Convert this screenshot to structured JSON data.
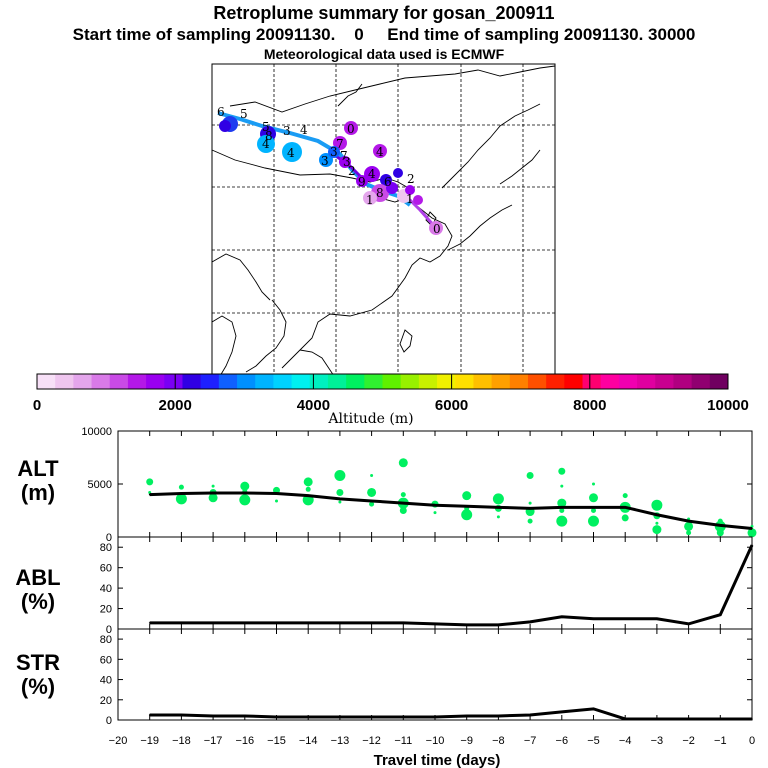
{
  "header": {
    "title": "Retroplume summary for gosan_200911",
    "subtitle": "Start time of sampling 20091130.    0     End time of sampling 20091130. 30000",
    "met_line": "Meteorological data used is ECMWF"
  },
  "colorbar": {
    "label": "Altitude (m)",
    "ticks": [
      "0",
      "2000",
      "4000",
      "6000",
      "8000",
      "10000"
    ],
    "colors": [
      "#f7e0f7",
      "#efc6ef",
      "#e4a6ec",
      "#d97ae8",
      "#c94ae6",
      "#b418e8",
      "#9a00f0",
      "#7a00f4",
      "#3000e4",
      "#1e20ff",
      "#1060ff",
      "#0090ff",
      "#00b4ff",
      "#00d2ff",
      "#00f0f0",
      "#00f0c0",
      "#00f098",
      "#00f060",
      "#30f030",
      "#60f000",
      "#98f000",
      "#c8f000",
      "#f0f000",
      "#ffe000",
      "#ffc000",
      "#ffa000",
      "#ff8000",
      "#ff5000",
      "#ff2000",
      "#ff0000",
      "#ff0070",
      "#ff00a0",
      "#f000b0",
      "#e000a0",
      "#c80090",
      "#b00080",
      "#900070",
      "#700060"
    ]
  },
  "map_markers": {
    "labels": [
      "6",
      "5",
      "5",
      "4",
      "4",
      "3",
      "3",
      "3",
      "3",
      "2",
      "2",
      "1",
      "1",
      "0",
      "0",
      "8",
      "8",
      "4",
      "4",
      "7",
      "7",
      "6",
      "9",
      "4"
    ]
  },
  "chart_data": [
    {
      "type": "line",
      "title": "ALT",
      "ylabel": "(m)",
      "ylim": [
        0,
        10000
      ],
      "yticks": [
        "0",
        "5000",
        "10000"
      ],
      "x": [
        -19,
        -18,
        -17,
        -16,
        -15,
        -14,
        -13,
        -12,
        -11,
        -10,
        -9,
        -8,
        -7,
        -6,
        -5,
        -4,
        -3,
        -2,
        -1,
        0
      ],
      "values": [
        4000,
        4100,
        4150,
        4150,
        4100,
        3900,
        3600,
        3400,
        3200,
        3000,
        2900,
        2800,
        2700,
        2800,
        2800,
        2800,
        2100,
        1500,
        1100,
        800
      ],
      "scatter_color": "#00f060",
      "scatter": [
        {
          "x": -19,
          "y": 4200
        },
        {
          "x": -19,
          "y": 5200
        },
        {
          "x": -18,
          "y": 3600
        },
        {
          "x": -18,
          "y": 4700
        },
        {
          "x": -17,
          "y": 3700
        },
        {
          "x": -17,
          "y": 4800
        },
        {
          "x": -17,
          "y": 4200
        },
        {
          "x": -16,
          "y": 3500
        },
        {
          "x": -16,
          "y": 4300
        },
        {
          "x": -16,
          "y": 4800
        },
        {
          "x": -15,
          "y": 3400
        },
        {
          "x": -15,
          "y": 4400
        },
        {
          "x": -14,
          "y": 3500
        },
        {
          "x": -14,
          "y": 4500
        },
        {
          "x": -14,
          "y": 5200
        },
        {
          "x": -13,
          "y": 3300
        },
        {
          "x": -13,
          "y": 4200
        },
        {
          "x": -13,
          "y": 5800
        },
        {
          "x": -12,
          "y": 3100
        },
        {
          "x": -12,
          "y": 4200
        },
        {
          "x": -12,
          "y": 5800
        },
        {
          "x": -11,
          "y": 2500
        },
        {
          "x": -11,
          "y": 3200
        },
        {
          "x": -11,
          "y": 4000
        },
        {
          "x": -11,
          "y": 7000
        },
        {
          "x": -10,
          "y": 2300
        },
        {
          "x": -10,
          "y": 3100
        },
        {
          "x": -9,
          "y": 2100
        },
        {
          "x": -9,
          "y": 2700
        },
        {
          "x": -9,
          "y": 3900
        },
        {
          "x": -8,
          "y": 1900
        },
        {
          "x": -8,
          "y": 2700
        },
        {
          "x": -8,
          "y": 3600
        },
        {
          "x": -7,
          "y": 1500
        },
        {
          "x": -7,
          "y": 2400
        },
        {
          "x": -7,
          "y": 3200
        },
        {
          "x": -7,
          "y": 5800
        },
        {
          "x": -6,
          "y": 1500
        },
        {
          "x": -6,
          "y": 2500
        },
        {
          "x": -6,
          "y": 3200
        },
        {
          "x": -6,
          "y": 4800
        },
        {
          "x": -6,
          "y": 6200
        },
        {
          "x": -5,
          "y": 1500
        },
        {
          "x": -5,
          "y": 2500
        },
        {
          "x": -5,
          "y": 3700
        },
        {
          "x": -5,
          "y": 5000
        },
        {
          "x": -4,
          "y": 1800
        },
        {
          "x": -4,
          "y": 2800
        },
        {
          "x": -4,
          "y": 3900
        },
        {
          "x": -3,
          "y": 700
        },
        {
          "x": -3,
          "y": 1300
        },
        {
          "x": -3,
          "y": 2000
        },
        {
          "x": -3,
          "y": 3000
        },
        {
          "x": -2,
          "y": 400
        },
        {
          "x": -2,
          "y": 1000
        },
        {
          "x": -2,
          "y": 1700
        },
        {
          "x": -1,
          "y": 400
        },
        {
          "x": -1,
          "y": 1000
        },
        {
          "x": -1,
          "y": 1500
        },
        {
          "x": 0,
          "y": 400
        },
        {
          "x": 0,
          "y": 1000
        }
      ]
    },
    {
      "type": "line",
      "title": "ABL",
      "ylabel": "(%)",
      "ylim": [
        0,
        90
      ],
      "yticks": [
        "0",
        "20",
        "40",
        "60",
        "80"
      ],
      "x": [
        -19,
        -18,
        -17,
        -16,
        -15,
        -14,
        -13,
        -12,
        -11,
        -10,
        -9,
        -8,
        -7,
        -6,
        -5,
        -4,
        -3,
        -2,
        -1,
        0
      ],
      "values": [
        6,
        6,
        6,
        6,
        6,
        6,
        6,
        6,
        6,
        5,
        4,
        4,
        7,
        12,
        10,
        10,
        10,
        5,
        14,
        82
      ]
    },
    {
      "type": "line",
      "title": "STR",
      "ylabel": "(%)",
      "ylim": [
        0,
        90
      ],
      "yticks": [
        "0",
        "20",
        "40",
        "60",
        "80"
      ],
      "x": [
        -19,
        -18,
        -17,
        -16,
        -15,
        -14,
        -13,
        -12,
        -11,
        -10,
        -9,
        -8,
        -7,
        -6,
        -5,
        -4,
        -3,
        -2,
        -1,
        0
      ],
      "values": [
        5,
        5,
        4,
        4,
        3,
        3,
        3,
        3,
        3,
        3,
        4,
        4,
        5,
        8,
        11,
        1,
        1,
        1,
        1,
        1
      ]
    }
  ],
  "x_axis": {
    "xlabel": "Travel time (days)",
    "ticks": [
      "−20",
      "−19",
      "−18",
      "−17",
      "−16",
      "−15",
      "−14",
      "−13",
      "−12",
      "−11",
      "−10",
      "−9",
      "−8",
      "−7",
      "−6",
      "−5",
      "−4",
      "−3",
      "−2",
      "−1",
      "0"
    ],
    "xlim": [
      -20,
      0
    ]
  }
}
